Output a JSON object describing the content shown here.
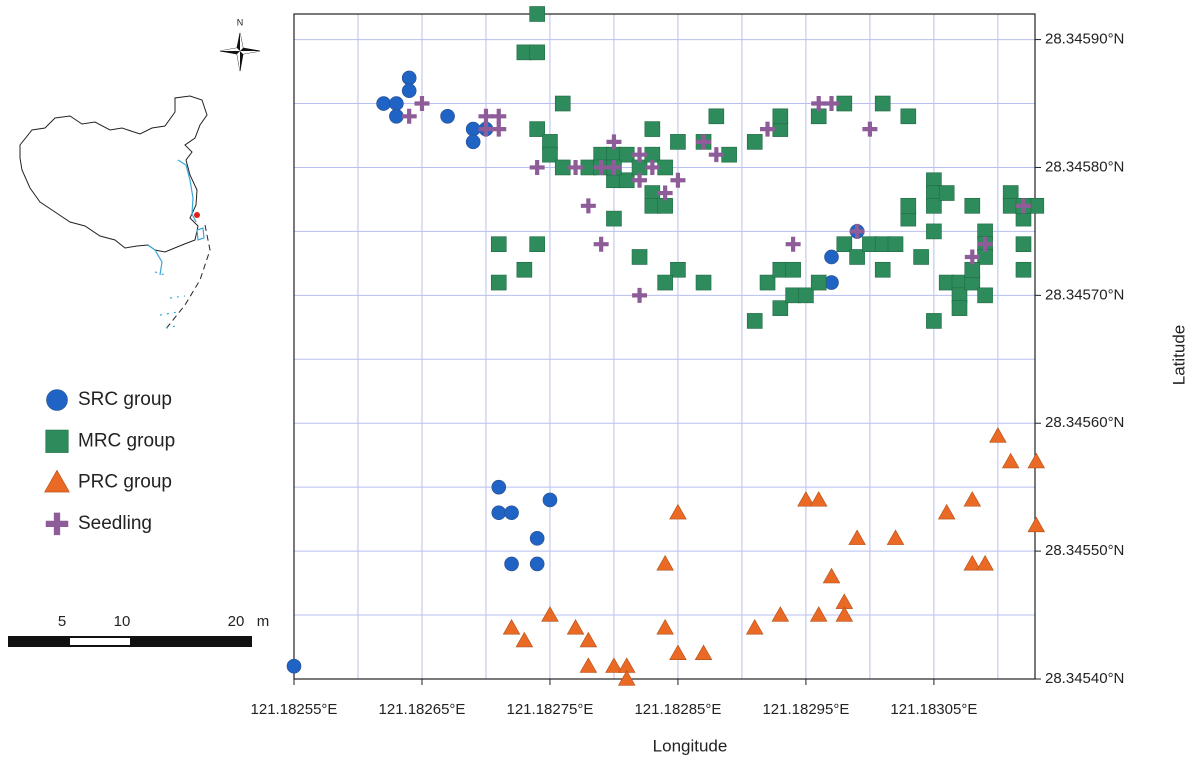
{
  "chart_data": {
    "type": "scatter",
    "xlabel": "Longitude",
    "ylabel": "Latitude",
    "xlim": [
      121.18255,
      121.183129
    ],
    "ylim": [
      28.3454,
      28.34592
    ],
    "xticks": [
      {
        "value": 121.18255,
        "label": "121.18255°E"
      },
      {
        "value": 121.18265,
        "label": "121.18265°E"
      },
      {
        "value": 121.18275,
        "label": "121.18275°E"
      },
      {
        "value": 121.18285,
        "label": "121.18285°E"
      },
      {
        "value": 121.18295,
        "label": "121.18295°E"
      },
      {
        "value": 121.18305,
        "label": "121.18305°E"
      }
    ],
    "yticks": [
      {
        "value": 28.3454,
        "label": "28.34540°N"
      },
      {
        "value": 28.3455,
        "label": "28.34550°N"
      },
      {
        "value": 28.3456,
        "label": "28.34560°N"
      },
      {
        "value": 28.3457,
        "label": "28.34570°N"
      },
      {
        "value": 28.3458,
        "label": "28.34580°N"
      },
      {
        "value": 28.3459,
        "label": "28.34590°N"
      }
    ],
    "minor_xticks": [
      121.1826,
      121.1827,
      121.1828,
      121.1829,
      121.183,
      121.1831
    ],
    "minor_yticks": [
      28.34545,
      28.34555,
      28.34565,
      28.34575,
      28.34585
    ],
    "grid": true,
    "grid_color": "#b9bff0",
    "series": [
      {
        "name": "SRC group",
        "color": "#1f63c4",
        "marker": "circle",
        "x": [
          121.18262,
          121.18263,
          121.18264,
          121.18264,
          121.18263,
          121.18267,
          121.18269,
          121.18269,
          121.1827,
          121.18297,
          121.18297,
          121.18299,
          121.18312,
          121.18271,
          121.18271,
          121.18272,
          121.18275,
          121.18274,
          121.18272,
          121.18274,
          121.18255
        ],
        "y": [
          28.34585,
          28.34585,
          28.34587,
          28.34586,
          28.34584,
          28.34584,
          28.34583,
          28.34582,
          28.34583,
          28.34573,
          28.34571,
          28.34575,
          28.34577,
          28.34555,
          28.34553,
          28.34553,
          28.34554,
          28.34551,
          28.34549,
          28.34549,
          28.34541
        ]
      },
      {
        "name": "MRC group",
        "color": "#2e8b5c",
        "marker": "square",
        "x": [
          121.18274,
          121.18273,
          121.18274,
          121.18276,
          121.18274,
          121.18275,
          121.18275,
          121.18276,
          121.18278,
          121.18279,
          121.1828,
          121.18281,
          121.1828,
          121.18281,
          121.18282,
          121.18283,
          121.18283,
          121.18284,
          121.18283,
          121.18283,
          121.18284,
          121.18285,
          121.18287,
          121.18288,
          121.18289,
          121.1828,
          121.18282,
          121.18285,
          121.18284,
          121.18287,
          121.18271,
          121.18271,
          121.18273,
          121.18274,
          121.18291,
          121.18293,
          121.18293,
          121.18296,
          121.18298,
          121.18301,
          121.18303,
          121.18291,
          121.18292,
          121.18293,
          121.18294,
          121.18293,
          121.18294,
          121.18295,
          121.18296,
          121.18298,
          121.18299,
          121.183,
          121.18301,
          121.18302,
          121.18301,
          121.18303,
          121.18303,
          121.18304,
          121.18305,
          121.18305,
          121.18305,
          121.18306,
          121.18305,
          121.18305,
          121.18306,
          121.18307,
          121.18307,
          121.18307,
          121.18308,
          121.18308,
          121.18309,
          121.18309,
          121.18309,
          121.18309,
          121.18308,
          121.18311,
          121.18311,
          121.18312,
          121.18312,
          121.18312,
          121.18313,
          121.18312,
          121.18279,
          121.1828
        ],
        "y": [
          28.34592,
          28.34589,
          28.34589,
          28.34585,
          28.34583,
          28.34582,
          28.34581,
          28.3458,
          28.3458,
          28.34581,
          28.34581,
          28.34581,
          28.34579,
          28.34579,
          28.3458,
          28.34581,
          28.34583,
          28.3458,
          28.34578,
          28.34577,
          28.34577,
          28.34582,
          28.34582,
          28.34584,
          28.34581,
          28.34576,
          28.34573,
          28.34572,
          28.34571,
          28.34571,
          28.34574,
          28.34571,
          28.34572,
          28.34574,
          28.34582,
          28.34583,
          28.34584,
          28.34584,
          28.34585,
          28.34585,
          28.34584,
          28.34568,
          28.34571,
          28.34572,
          28.34572,
          28.34569,
          28.3457,
          28.3457,
          28.34571,
          28.34574,
          28.34573,
          28.34574,
          28.34574,
          28.34574,
          28.34572,
          28.34576,
          28.34577,
          28.34573,
          28.34579,
          28.34578,
          28.34577,
          28.34578,
          28.34575,
          28.34568,
          28.34571,
          28.34571,
          28.3457,
          28.34569,
          28.34577,
          28.34571,
          28.34575,
          28.34574,
          28.34573,
          28.3457,
          28.34572,
          28.34578,
          28.34577,
          28.34576,
          28.34574,
          28.34572,
          28.34577,
          28.34577,
          28.3458,
          28.3458
        ]
      },
      {
        "name": "PRC group",
        "color": "#ea6a25",
        "marker": "triangle",
        "x": [
          121.18272,
          121.18273,
          121.18275,
          121.18277,
          121.18278,
          121.18278,
          121.1828,
          121.18281,
          121.18281,
          121.18284,
          121.18285,
          121.18287,
          121.18284,
          121.18285,
          121.18291,
          121.18293,
          121.18295,
          121.18296,
          121.18296,
          121.18297,
          121.18298,
          121.18298,
          121.18299,
          121.18302,
          121.18306,
          121.18308,
          121.18308,
          121.18309,
          121.1831,
          121.18311,
          121.18313,
          121.18313
        ],
        "y": [
          28.34544,
          28.34543,
          28.34545,
          28.34544,
          28.34543,
          28.34541,
          28.34541,
          28.34541,
          28.3454,
          28.34544,
          28.34542,
          28.34542,
          28.34549,
          28.34553,
          28.34544,
          28.34545,
          28.34554,
          28.34554,
          28.34545,
          28.34548,
          28.34546,
          28.34545,
          28.34551,
          28.34551,
          28.34553,
          28.34554,
          28.34549,
          28.34549,
          28.34559,
          28.34557,
          28.34557,
          28.34552
        ]
      },
      {
        "name": "Seedling",
        "color": "#8e5c98",
        "marker": "plus",
        "x": [
          121.18265,
          121.18264,
          121.1827,
          121.18271,
          121.1827,
          121.18271,
          121.18274,
          121.18277,
          121.18279,
          121.1828,
          121.1828,
          121.18282,
          121.18283,
          121.18282,
          121.18285,
          121.18284,
          121.18278,
          121.18279,
          121.18282,
          121.18287,
          121.18288,
          121.18292,
          121.18296,
          121.18297,
          121.183,
          121.18294,
          121.18299,
          121.18308,
          121.18309,
          121.18312
        ],
        "y": [
          28.34585,
          28.34584,
          28.34584,
          28.34584,
          28.34583,
          28.34583,
          28.3458,
          28.3458,
          28.3458,
          28.3458,
          28.34582,
          28.34581,
          28.3458,
          28.34579,
          28.34579,
          28.34578,
          28.34577,
          28.34574,
          28.3457,
          28.34582,
          28.34581,
          28.34583,
          28.34585,
          28.34585,
          28.34583,
          28.34574,
          28.34575,
          28.34573,
          28.34574,
          28.34577
        ]
      }
    ],
    "scale_bar": {
      "labels": [
        "5",
        "10",
        "20"
      ],
      "unit": "m"
    },
    "compass": "N"
  }
}
